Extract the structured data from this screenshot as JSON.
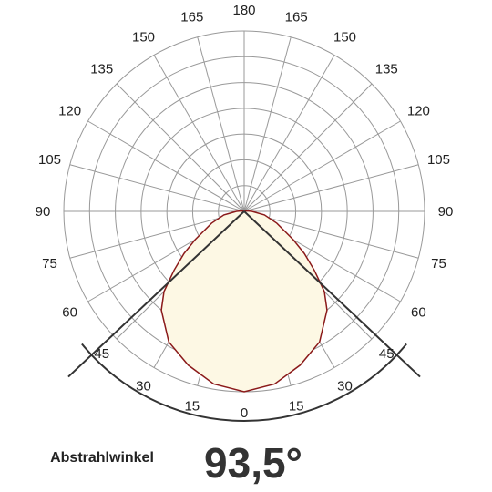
{
  "chart_data": {
    "type": "polar",
    "thetaticks": [
      0,
      15,
      30,
      45,
      60,
      75,
      90,
      105,
      120,
      135,
      150,
      165,
      180
    ],
    "rlim": [
      0,
      140
    ],
    "rticks": [
      20,
      40,
      60,
      80,
      100,
      120,
      140
    ],
    "grid": true,
    "x": [
      -110,
      -100,
      -90,
      -80,
      -70,
      -60,
      -55,
      -50,
      -45,
      -40,
      -30,
      -20,
      -10,
      0,
      10,
      20,
      30,
      40,
      45,
      50,
      55,
      60,
      70,
      80,
      90,
      100,
      110
    ],
    "series": [
      {
        "color": "#8b1a1a",
        "fill": "#fdf8e4",
        "values": [
          0,
          2,
          6,
          16,
          27,
          44,
          57,
          71,
          88,
          100,
          117,
          127,
          136,
          140,
          136,
          127,
          117,
          100,
          88,
          71,
          57,
          44,
          27,
          16,
          6,
          2,
          0
        ]
      }
    ],
    "beam_angle": {
      "value": 93.5,
      "label": "93,5°"
    },
    "beam_angle_title": "Abstrahlwinkel"
  }
}
